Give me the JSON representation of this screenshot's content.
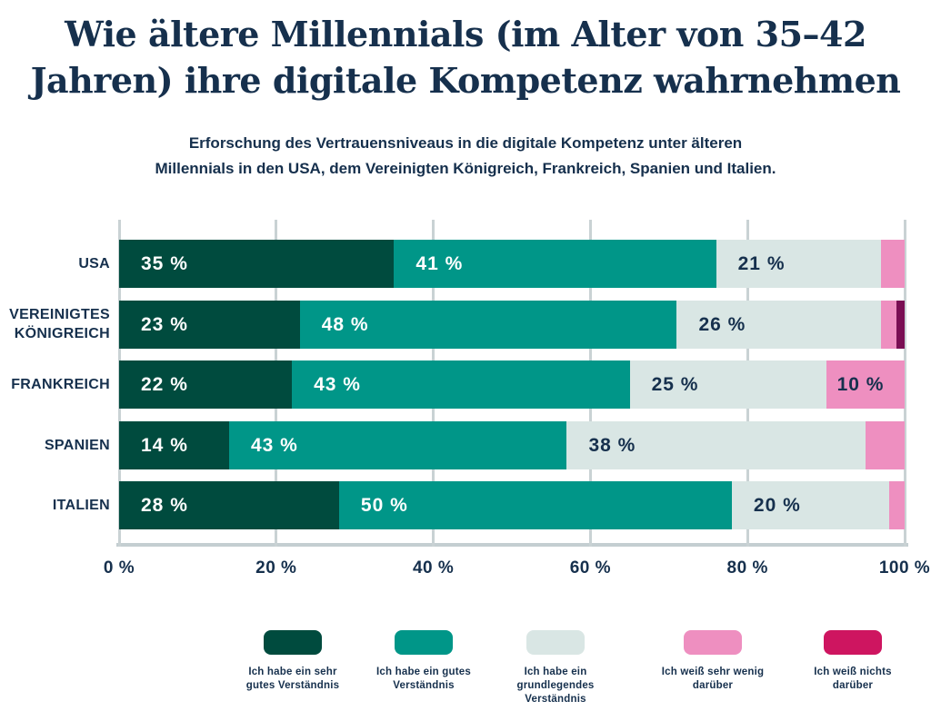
{
  "page": {
    "background": "#ffffff",
    "text_color": "#16304d"
  },
  "header": {
    "title_line1": "Wie ältere Millennials (im Alter von 35–42",
    "title_line2": "Jahren) ihre digitale Kompetenz wahrnehmen",
    "subtitle_line1": "Erforschung des Vertrauensniveaus in die digitale Kompetenz unter älteren",
    "subtitle_line2": "Millennials in den USA, dem Vereinigten Königreich, Frankreich, Spanien und Italien."
  },
  "chart_data": {
    "type": "bar",
    "orientation": "horizontal-stacked",
    "title": "Wie ältere Millennials (im Alter von 35–42 Jahren) ihre digitale Kompetenz wahrnehmen",
    "subtitle": "Erforschung des Vertrauensniveaus in die digitale Kompetenz unter älteren Millennials in den USA, dem Vereinigten Königreich, Frankreich, Spanien und Italien.",
    "categories": [
      "USA",
      "VEREINIGTES KÖNIGREICH",
      "FRANKREICH",
      "SPANIEN",
      "ITALIEN"
    ],
    "series": [
      {
        "name": "Ich habe ein sehr gutes Verständnis",
        "color": "#004b3e",
        "label_color": "#ffffff",
        "values": [
          35,
          23,
          22,
          14,
          28
        ]
      },
      {
        "name": "Ich habe ein gutes Verständnis",
        "color": "#009688",
        "label_color": "#ffffff",
        "values": [
          41,
          48,
          43,
          43,
          50
        ]
      },
      {
        "name": "Ich habe ein grundlegendes Verständnis",
        "color": "#d9e6e4",
        "label_color": "#16304d",
        "values": [
          21,
          26,
          25,
          38,
          20
        ]
      },
      {
        "name": "Ich weiß sehr wenig darüber",
        "color": "#ee8fc0",
        "label_color": "#16304d",
        "values": [
          3,
          2,
          10,
          5,
          2
        ]
      },
      {
        "name": "Ich weiß nichts darüber",
        "color": "#ce1560",
        "bar_color": "#7a0e53",
        "label_color": "#ffffff",
        "values": [
          0,
          1,
          0,
          0,
          0
        ]
      }
    ],
    "x_ticks": [
      "0 %",
      "20 %",
      "40 %",
      "60 %",
      "80 %",
      "100 %"
    ],
    "xlim": [
      0,
      100
    ],
    "value_suffix": " %",
    "label_min_value": 10,
    "grid": true,
    "gridline_color": "#c9d2d4",
    "legend_position": "bottom"
  }
}
